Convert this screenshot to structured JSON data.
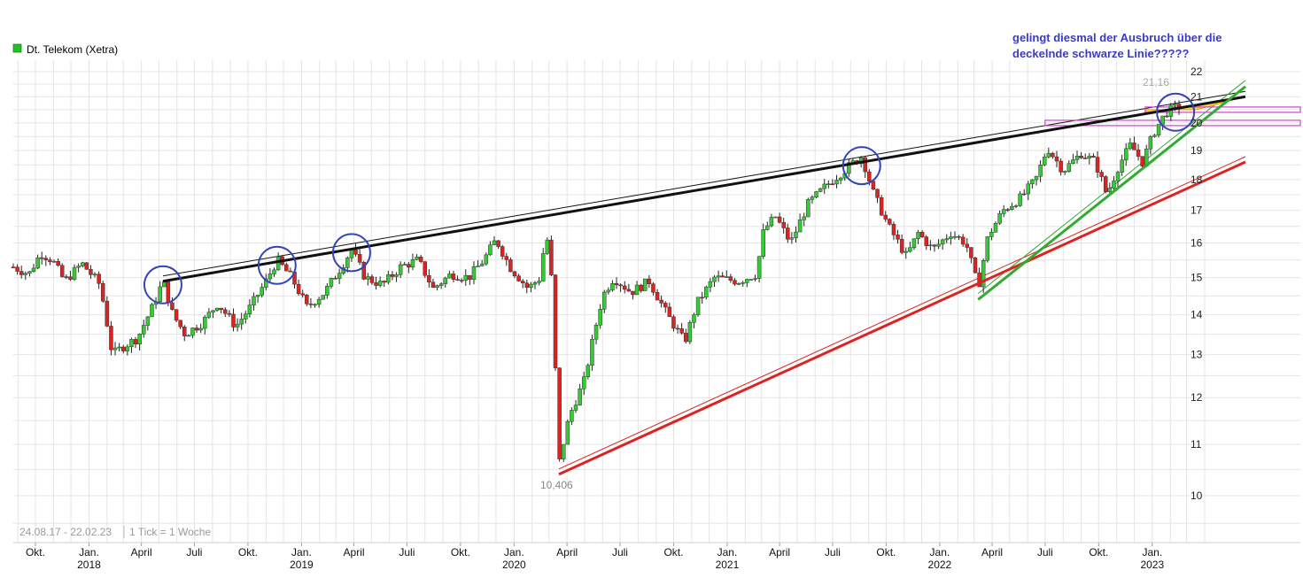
{
  "legend": {
    "label": "Dt. Telekom (Xetra)",
    "color": "#22c02a"
  },
  "annotation": {
    "line1": "gelingt diesmal der Ausbruch über die",
    "line2": "deckelnde schwarze Linie?????",
    "color": "#3a3ac8"
  },
  "footer": {
    "range": "24.08.17 - 22.02.23",
    "tick": "1 Tick = 1 Woche"
  },
  "markers": {
    "low_label": "10,406",
    "high_label": "21,16"
  },
  "colors": {
    "up": "#33cc33",
    "down": "#dd2222",
    "grid": "#e4e4e4",
    "trend_black": "#111111",
    "trend_red": "#dd2222",
    "trend_green": "#33aa33",
    "circle": "#3344bb",
    "magenta": "#cc44cc",
    "yellow": "#ffd21a"
  },
  "chart_data": {
    "type": "candlestick",
    "title": "Dt. Telekom (Xetra)",
    "period": "weekly",
    "y_scale": "log",
    "ylim": [
      9.5,
      22.5
    ],
    "y_ticks": [
      10,
      11,
      12,
      13,
      14,
      15,
      16,
      17,
      18,
      19,
      20,
      21,
      22
    ],
    "x_ticks": [
      {
        "label": "Okt.",
        "year": ""
      },
      {
        "label": "Jan.",
        "year": "2018"
      },
      {
        "label": "April",
        "year": ""
      },
      {
        "label": "Juli",
        "year": ""
      },
      {
        "label": "Okt.",
        "year": ""
      },
      {
        "label": "Jan.",
        "year": "2019"
      },
      {
        "label": "April",
        "year": ""
      },
      {
        "label": "Juli",
        "year": ""
      },
      {
        "label": "Okt.",
        "year": ""
      },
      {
        "label": "Jan.",
        "year": "2020"
      },
      {
        "label": "April",
        "year": ""
      },
      {
        "label": "Juli",
        "year": ""
      },
      {
        "label": "Okt.",
        "year": ""
      },
      {
        "label": "Jan.",
        "year": "2021"
      },
      {
        "label": "April",
        "year": ""
      },
      {
        "label": "Juli",
        "year": ""
      },
      {
        "label": "Okt.",
        "year": ""
      },
      {
        "label": "Jan.",
        "year": "2022"
      },
      {
        "label": "April",
        "year": ""
      },
      {
        "label": "Juli",
        "year": ""
      },
      {
        "label": "Okt.",
        "year": ""
      },
      {
        "label": "Jan.",
        "year": "2023"
      }
    ],
    "x_start": "2017-08-24",
    "x_end": "2023-02-22",
    "price_path": [
      [
        "2017-08-24",
        15.3
      ],
      [
        "2017-09-20",
        15.1
      ],
      [
        "2017-10-10",
        15.7
      ],
      [
        "2017-10-30",
        15.5
      ],
      [
        "2017-11-20",
        14.9
      ],
      [
        "2017-12-20",
        15.4
      ],
      [
        "2018-01-20",
        14.8
      ],
      [
        "2018-02-10",
        13.0
      ],
      [
        "2018-03-01",
        13.2
      ],
      [
        "2018-03-25",
        13.4
      ],
      [
        "2018-04-20",
        14.2
      ],
      [
        "2018-05-08",
        14.9
      ],
      [
        "2018-05-25",
        14.0
      ],
      [
        "2018-06-15",
        13.5
      ],
      [
        "2018-07-15",
        13.8
      ],
      [
        "2018-08-10",
        14.3
      ],
      [
        "2018-09-10",
        13.7
      ],
      [
        "2018-10-05",
        14.2
      ],
      [
        "2018-11-01",
        14.9
      ],
      [
        "2018-11-20",
        15.5
      ],
      [
        "2018-12-15",
        15.0
      ],
      [
        "2019-01-10",
        14.2
      ],
      [
        "2019-02-10",
        14.6
      ],
      [
        "2019-03-10",
        15.3
      ],
      [
        "2019-03-28",
        15.8
      ],
      [
        "2019-04-20",
        15.0
      ],
      [
        "2019-05-20",
        14.8
      ],
      [
        "2019-06-20",
        15.3
      ],
      [
        "2019-07-20",
        15.5
      ],
      [
        "2019-08-15",
        14.7
      ],
      [
        "2019-09-15",
        15.1
      ],
      [
        "2019-10-15",
        15.0
      ],
      [
        "2019-11-10",
        15.5
      ],
      [
        "2019-12-01",
        16.1
      ],
      [
        "2019-12-25",
        15.3
      ],
      [
        "2020-01-25",
        14.7
      ],
      [
        "2020-02-15",
        15.0
      ],
      [
        "2020-02-25",
        16.4
      ],
      [
        "2020-03-05",
        15.0
      ],
      [
        "2020-03-18",
        10.6
      ],
      [
        "2020-04-05",
        11.6
      ],
      [
        "2020-05-01",
        12.4
      ],
      [
        "2020-06-01",
        14.5
      ],
      [
        "2020-06-20",
        15.0
      ],
      [
        "2020-07-20",
        14.6
      ],
      [
        "2020-08-20",
        14.9
      ],
      [
        "2020-09-20",
        14.0
      ],
      [
        "2020-10-20",
        13.3
      ],
      [
        "2020-11-10",
        14.3
      ],
      [
        "2020-12-10",
        15.0
      ],
      [
        "2021-01-20",
        14.9
      ],
      [
        "2021-02-20",
        15.1
      ],
      [
        "2021-03-05",
        16.4
      ],
      [
        "2021-03-25",
        16.8
      ],
      [
        "2021-04-20",
        16.0
      ],
      [
        "2021-05-20",
        17.2
      ],
      [
        "2021-06-20",
        17.8
      ],
      [
        "2021-07-20",
        18.3
      ],
      [
        "2021-08-20",
        18.8
      ],
      [
        "2021-09-10",
        17.5
      ],
      [
        "2021-10-05",
        16.5
      ],
      [
        "2021-11-05",
        15.6
      ],
      [
        "2021-11-25",
        16.3
      ],
      [
        "2021-12-20",
        15.8
      ],
      [
        "2022-01-20",
        16.3
      ],
      [
        "2022-02-15",
        16.0
      ],
      [
        "2022-03-08",
        14.7
      ],
      [
        "2022-03-25",
        16.2
      ],
      [
        "2022-04-20",
        17.0
      ],
      [
        "2022-05-20",
        17.4
      ],
      [
        "2022-06-15",
        18.0
      ],
      [
        "2022-07-05",
        19.1
      ],
      [
        "2022-08-01",
        18.3
      ],
      [
        "2022-09-01",
        18.9
      ],
      [
        "2022-09-25",
        18.6
      ],
      [
        "2022-10-15",
        17.5
      ],
      [
        "2022-11-05",
        18.5
      ],
      [
        "2022-11-25",
        19.2
      ],
      [
        "2022-12-15",
        18.6
      ],
      [
        "2023-01-05",
        19.7
      ],
      [
        "2023-01-25",
        20.4
      ],
      [
        "2023-02-22",
        20.7
      ]
    ],
    "trendlines": [
      {
        "name": "deckelnde schwarze Linie",
        "color": "black",
        "from": [
          "2018-05-08",
          14.9
        ],
        "to": [
          "2023-06-10",
          21.0
        ]
      },
      {
        "name": "rote Unterstützung",
        "color": "red",
        "from": [
          "2020-03-18",
          10.406
        ],
        "to": [
          "2023-06-10",
          18.6
        ]
      },
      {
        "name": "grüne Unterstützung",
        "color": "green",
        "from": [
          "2022-03-08",
          14.4
        ],
        "to": [
          "2023-06-10",
          21.4
        ]
      }
    ],
    "low": {
      "date": "2020-03-18",
      "value": 10.406
    },
    "high": {
      "date": "2023-02-10",
      "value": 21.16
    },
    "circled_highs": [
      "2018-05-08",
      "2018-11-20",
      "2019-03-28",
      "2021-08-20",
      "2023-02-10"
    ],
    "horizontal_zones": [
      20.0,
      20.5
    ]
  }
}
